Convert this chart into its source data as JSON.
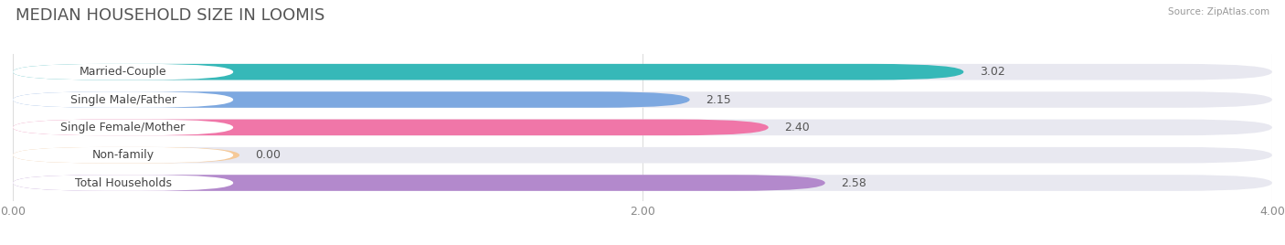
{
  "title": "MEDIAN HOUSEHOLD SIZE IN LOOMIS",
  "source": "Source: ZipAtlas.com",
  "categories": [
    "Married-Couple",
    "Single Male/Father",
    "Single Female/Mother",
    "Non-family",
    "Total Households"
  ],
  "values": [
    3.02,
    2.15,
    2.4,
    0.0,
    2.58
  ],
  "bar_colors": [
    "#36b8b8",
    "#7da8e0",
    "#f076a8",
    "#f5c998",
    "#b389cc"
  ],
  "background_color": "#ffffff",
  "bar_bg_color": "#e8e8f0",
  "label_bg_color": "#ffffff",
  "xlim": [
    0,
    4.0
  ],
  "xticks": [
    0.0,
    2.0,
    4.0
  ],
  "xlabel_labels": [
    "0.00",
    "2.00",
    "4.00"
  ],
  "title_fontsize": 13,
  "label_fontsize": 9,
  "value_fontsize": 9,
  "bar_height": 0.58
}
